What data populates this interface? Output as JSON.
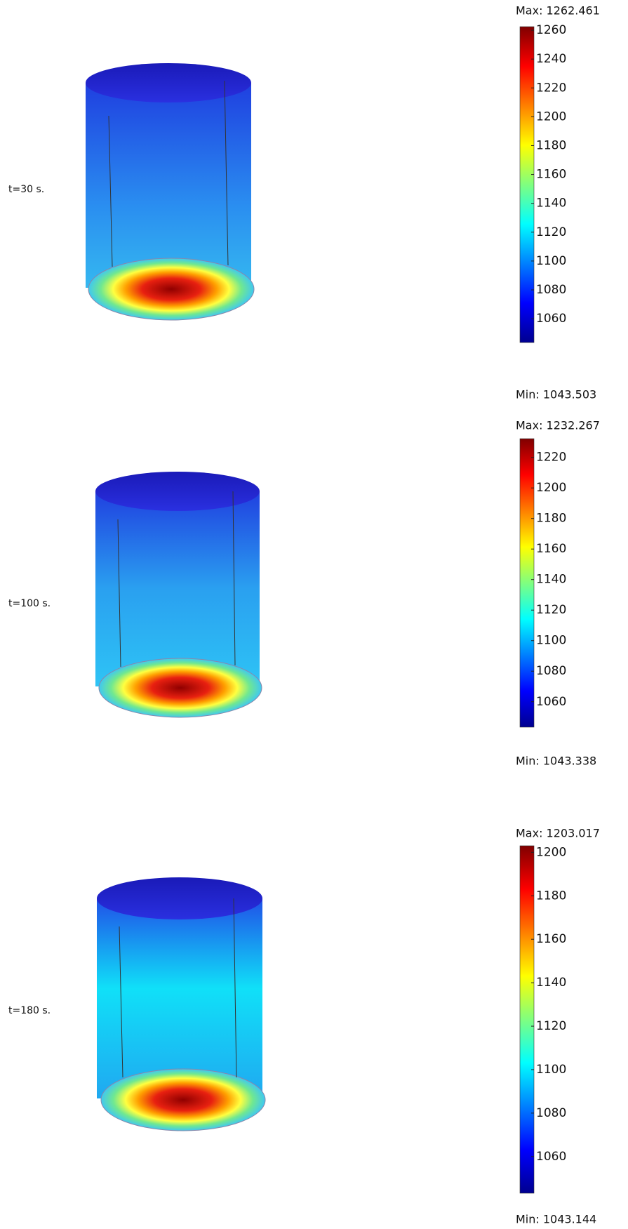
{
  "chart_data": [
    {
      "type": "heatmap",
      "title": "t=30 s.",
      "max_label": "Max: 1262.461",
      "min_label": "Min: 1043.503",
      "colormap": "jet",
      "ylim": [
        1043.503,
        1262.461
      ],
      "yticks": [
        1060,
        1080,
        1100,
        1120,
        1140,
        1160,
        1180,
        1200,
        1220,
        1240,
        1260
      ]
    },
    {
      "type": "heatmap",
      "title": "t=100 s.",
      "max_label": "Max: 1232.267",
      "min_label": "Min: 1043.338",
      "colormap": "jet",
      "ylim": [
        1043.338,
        1232.267
      ],
      "yticks": [
        1060,
        1080,
        1100,
        1120,
        1140,
        1160,
        1180,
        1200,
        1220
      ]
    },
    {
      "type": "heatmap",
      "title": "t=180 s.",
      "max_label": "Max: 1203.017",
      "min_label": "Min: 1043.144",
      "colormap": "jet",
      "ylim": [
        1043.144,
        1203.017
      ],
      "yticks": [
        1060,
        1080,
        1100,
        1120,
        1140,
        1160,
        1180,
        1200
      ]
    }
  ]
}
